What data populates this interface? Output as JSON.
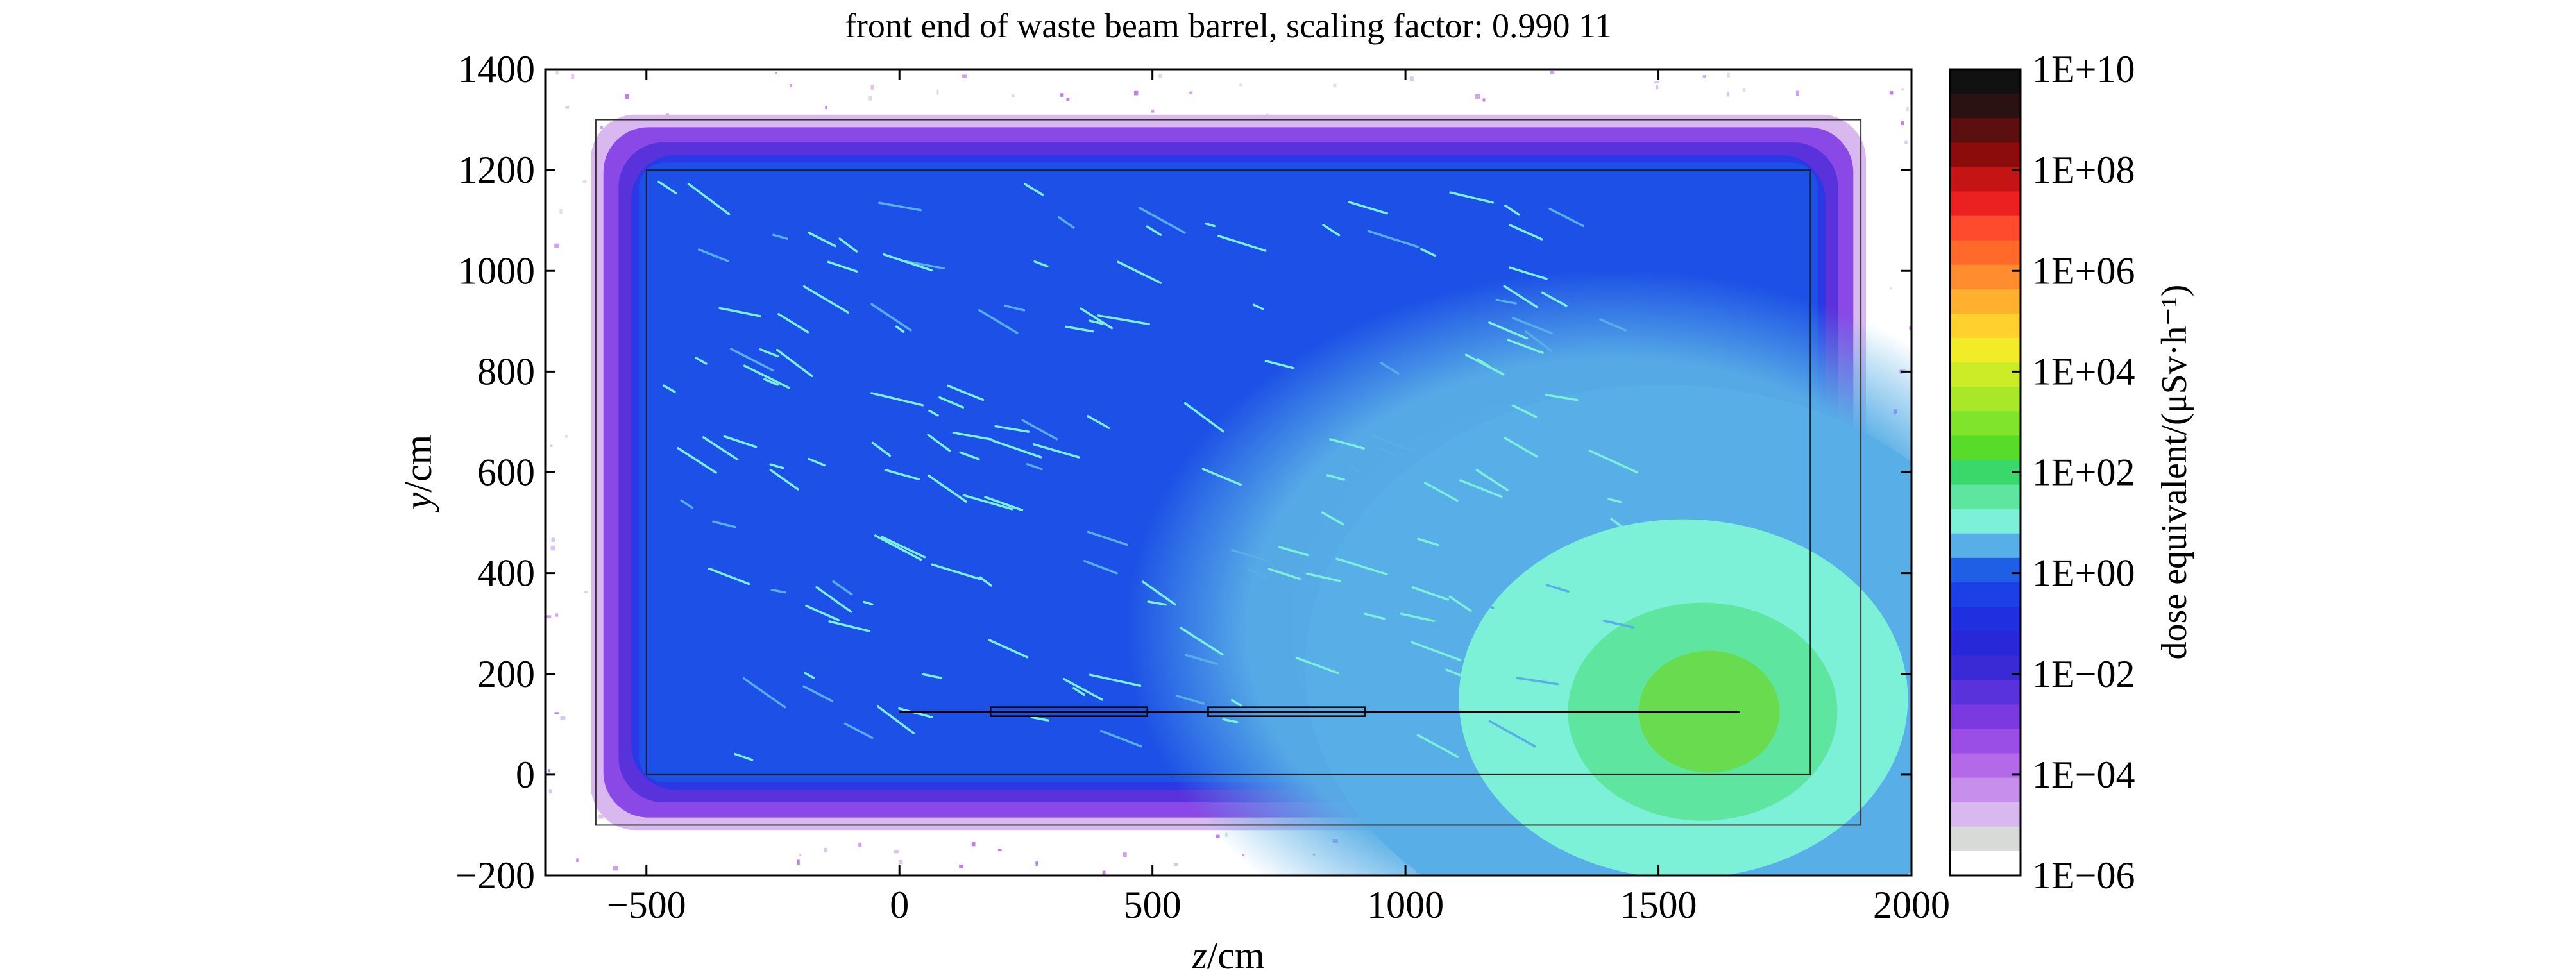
{
  "chart_data": {
    "type": "heatmap",
    "title": "front end of waste beam barrel, scaling factor: 0.990 11",
    "xlabel_var": "z",
    "xlabel_unit": "/cm",
    "ylabel_var": "y",
    "ylabel_unit": "/cm",
    "xlim": [
      -700,
      2000
    ],
    "ylim": [
      -200,
      1400
    ],
    "x_ticks": [
      "−500",
      "0",
      "500",
      "1000",
      "1500",
      "2000"
    ],
    "x_tick_values": [
      -500,
      0,
      500,
      1000,
      1500,
      2000
    ],
    "y_ticks": [
      "−200",
      "0",
      "200",
      "400",
      "600",
      "800",
      "1000",
      "1200",
      "1400"
    ],
    "y_tick_values": [
      -200,
      0,
      200,
      400,
      600,
      800,
      1000,
      1200,
      1400
    ],
    "grid": false,
    "colorbar": {
      "label": "dose equivalent/(μSv·h⁻¹)",
      "scale": "log",
      "range_exponents": [
        -6,
        10
      ],
      "tick_labels": [
        "1E+10",
        "1E+08",
        "1E+06",
        "1E+04",
        "1E+02",
        "1E+00",
        "1E−02",
        "1E−04",
        "1E−06"
      ],
      "tick_exponents": [
        10,
        8,
        6,
        4,
        2,
        0,
        -2,
        -4,
        -6
      ],
      "colors_top_to_bottom": [
        "#111111",
        "#2a1212",
        "#5c0f0f",
        "#8c0c0c",
        "#c41414",
        "#ec2020",
        "#ff4a2e",
        "#ff6a2a",
        "#ff8c2e",
        "#ffb02e",
        "#ffd02e",
        "#f2ec28",
        "#cdec28",
        "#a8e828",
        "#7fe42a",
        "#58dc2a",
        "#3ad86a",
        "#5ee6a0",
        "#7df0d8",
        "#58aee6",
        "#1e5fe6",
        "#1a40e6",
        "#1e30e0",
        "#2828d8",
        "#3a2ad6",
        "#5a32dc",
        "#7a3ae0",
        "#9a4ee6",
        "#b46ae8",
        "#c88eec",
        "#d8b8ee",
        "#d8dad8",
        "#ffffff"
      ]
    },
    "regions": {
      "outer_rectangle": {
        "z": [
          -600,
          1900
        ],
        "y": [
          -100,
          1300
        ]
      },
      "inner_rectangle": {
        "z": [
          -500,
          1800
        ],
        "y": [
          0,
          1200
        ]
      },
      "beam_line": {
        "z": [
          0,
          1660
        ],
        "y": 125
      },
      "beam_segments": [
        {
          "z": [
            180,
            490
          ],
          "y": 125
        },
        {
          "z": [
            610,
            920
          ],
          "y": 125
        }
      ],
      "hotspot_center": {
        "z": 1600,
        "y": 125
      }
    },
    "colors": {
      "background_dose": "#1c50e6",
      "halo": "#2a38e6",
      "fringe": "#8a48e6",
      "plume": "#58aee6",
      "core": "#7df0d8",
      "hot": "#5ee6a0",
      "hottest": "#6ad83a"
    }
  }
}
